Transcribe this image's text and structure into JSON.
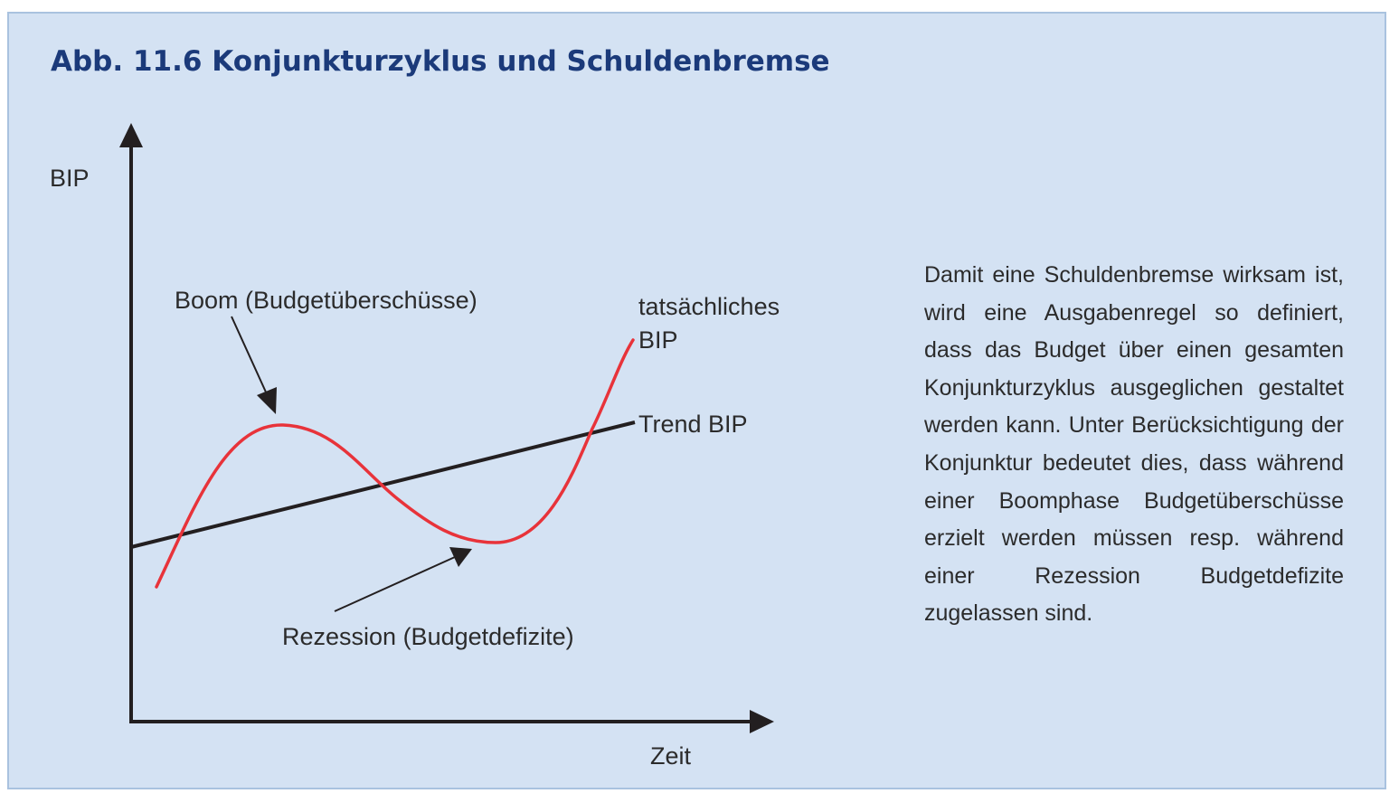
{
  "figure": {
    "title": "Abb. 11.6  Konjunkturzyklus und Schuldenbremse"
  },
  "diagram": {
    "y_axis_label": "BIP",
    "x_axis_label": "Zeit",
    "boom_label": "Boom (Budgetüberschüsse)",
    "recession_label": "Rezession (Budgetdefizite)",
    "actual_gdp_label_line1": "tatsächliches",
    "actual_gdp_label_line2": "BIP",
    "trend_label": "Trend BIP",
    "colors": {
      "actual_gdp_curve": "#e8333a",
      "trend_line": "#231f20",
      "axes": "#231f20",
      "background": "#d4e2f3",
      "title": "#1b3a7a"
    }
  },
  "description": {
    "text": "Damit eine Schuldenbremse wirksam ist, wird eine Ausgabenregel so definiert, dass das Budget über einen gesamten Konjunkturzyklus ausgeglichen gestaltet werden kann. Unter Berücksichtigung der Konjunktur bedeutet dies, dass während einer Boomphase Budgetüberschüsse erzielt werden müssen resp. während einer Rezession Budgetdefizite zugelassen sind."
  }
}
